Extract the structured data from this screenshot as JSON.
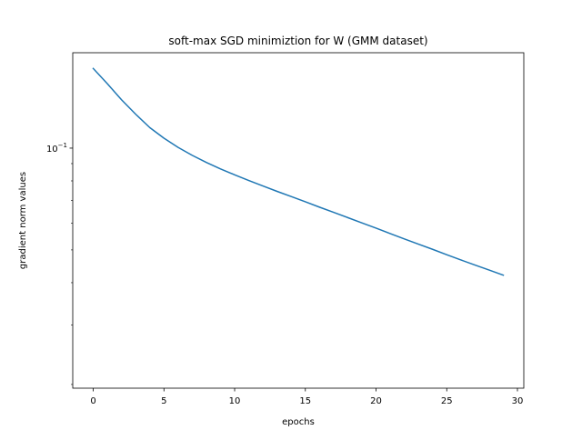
{
  "chart_data": {
    "type": "line",
    "title": "soft-max SGD minimiztion for W (GMM dataset)",
    "xlabel": "epochs",
    "ylabel": "gradient norm values",
    "yscale": "log",
    "xlim": [
      -1.45,
      30.45
    ],
    "ylim": [
      0.0195,
      0.1915
    ],
    "x_ticks": [
      0,
      5,
      10,
      15,
      20,
      25,
      30
    ],
    "x_tick_labels": [
      "0",
      "5",
      "10",
      "15",
      "20",
      "25",
      "30"
    ],
    "y_ticks": [
      0.1
    ],
    "y_tick_labels": [
      {
        "base": "10",
        "exp": "−1"
      }
    ],
    "grid": false,
    "line_color": "#1f77b4",
    "series": [
      {
        "x": [
          0,
          1,
          2,
          3,
          4,
          5,
          6,
          7,
          8,
          9,
          10,
          11,
          12,
          13,
          14,
          15,
          16,
          17,
          18,
          19,
          20,
          21,
          22,
          23,
          24,
          25,
          26,
          27,
          28,
          29
        ],
        "values": [
          0.172,
          0.155,
          0.139,
          0.126,
          0.115,
          0.107,
          0.1005,
          0.0952,
          0.0907,
          0.0868,
          0.0834,
          0.0802,
          0.0773,
          0.0745,
          0.0719,
          0.0694,
          0.0669,
          0.0646,
          0.0623,
          0.0601,
          0.058,
          0.0559,
          0.0539,
          0.052,
          0.0502,
          0.0484,
          0.0467,
          0.0451,
          0.0436,
          0.0421
        ]
      }
    ]
  }
}
